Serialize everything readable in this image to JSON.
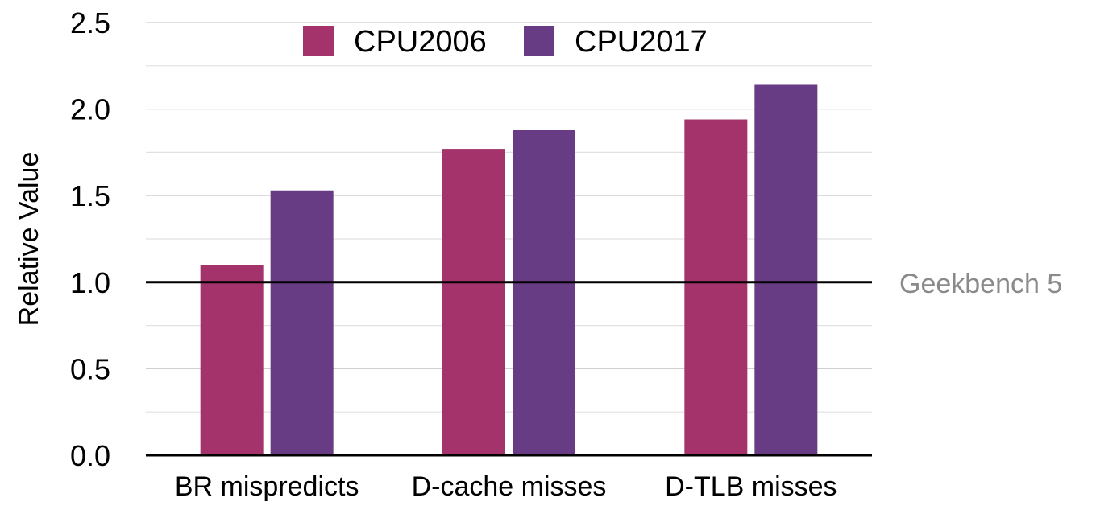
{
  "chart_data": {
    "type": "bar",
    "title": "",
    "xlabel": "",
    "ylabel": "Relative Value",
    "ylim": [
      0,
      2.5
    ],
    "yticks": [
      "0.0",
      "0.5",
      "1.0",
      "1.5",
      "2.0",
      "2.5"
    ],
    "minor_grid_step": 0.25,
    "grid": true,
    "legend_position": "top-center",
    "categories": [
      "BR mispredicts",
      "D-cache misses",
      "D-TLB misses"
    ],
    "series": [
      {
        "name": "CPU2006",
        "color": "#a3336a",
        "values": [
          1.1,
          1.77,
          1.94
        ]
      },
      {
        "name": "CPU2017",
        "color": "#683c85",
        "values": [
          1.53,
          1.88,
          2.14
        ]
      }
    ],
    "reference_line": {
      "value": 1.0,
      "label": "Geekbench 5",
      "label_color": "#8a8a8a"
    }
  }
}
